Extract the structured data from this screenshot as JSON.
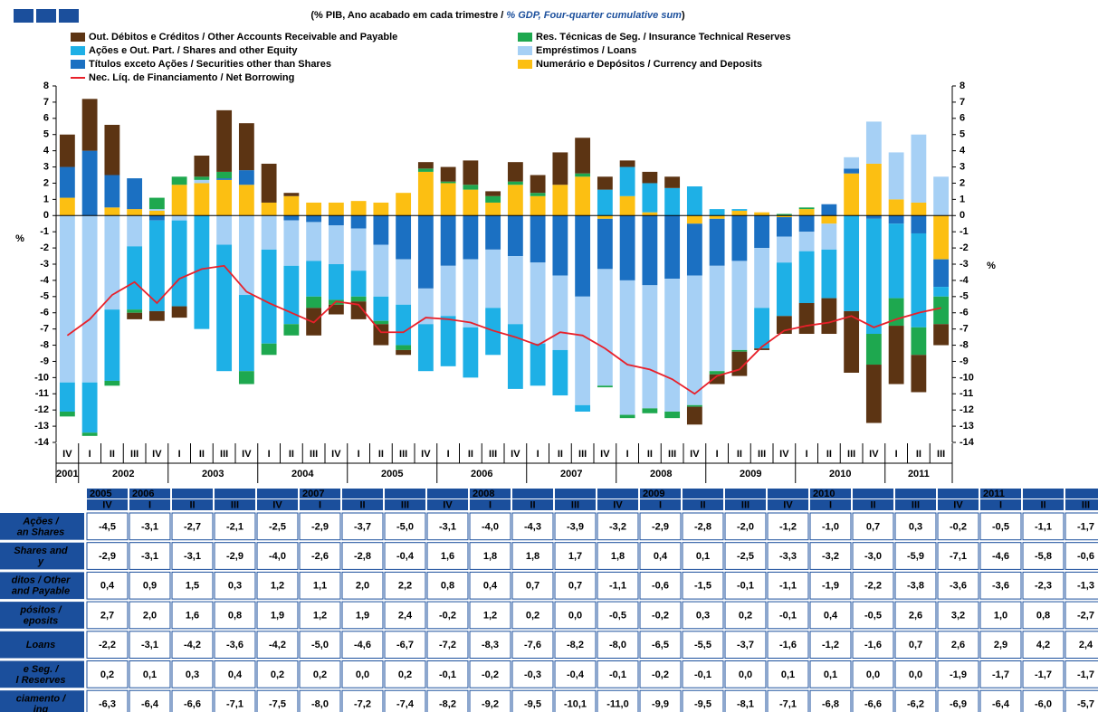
{
  "chart_data": {
    "type": "bar",
    "stacked": true,
    "subtitle": [
      "(% PIB, Ano acabado em cada trimestre / ",
      "% GDP, Four-quarter cumulative sum",
      ")"
    ],
    "y_label": "%",
    "y2_label": "%",
    "categories": [
      "IV",
      "I",
      "II",
      "III",
      "IV",
      "I",
      "II",
      "III",
      "IV",
      "I",
      "II",
      "III",
      "IV",
      "I",
      "II",
      "III",
      "IV",
      "I",
      "II",
      "III",
      "IV",
      "I",
      "II",
      "III",
      "IV",
      "I",
      "II",
      "III",
      "IV",
      "I",
      "II",
      "III",
      "IV",
      "I",
      "II",
      "III",
      "IV",
      "I",
      "II",
      "III"
    ],
    "groups": [
      {
        "label": "2001",
        "n": 1
      },
      {
        "label": "2002",
        "n": 4
      },
      {
        "label": "2003",
        "n": 4
      },
      {
        "label": "2004",
        "n": 4
      },
      {
        "label": "2005",
        "n": 4
      },
      {
        "label": "2006",
        "n": 4
      },
      {
        "label": "2007",
        "n": 4
      },
      {
        "label": "2008",
        "n": 4
      },
      {
        "label": "2009",
        "n": 4
      },
      {
        "label": "2010",
        "n": 4
      },
      {
        "label": "2011",
        "n": 3
      }
    ],
    "ylim": [
      -14,
      8
    ],
    "yticks": [
      -14,
      -13,
      -12,
      -11,
      -10,
      -9,
      -8,
      -7,
      -6,
      -5,
      -4,
      -3,
      -2,
      -1,
      0,
      1,
      2,
      3,
      4,
      5,
      6,
      7,
      8
    ],
    "y2lim": [
      -14,
      8
    ],
    "y2ticks": [
      -14,
      -13,
      -12,
      -11,
      -10,
      -9,
      -8,
      -7,
      -6,
      -5,
      -4,
      -3,
      -2,
      -1,
      0,
      1,
      2,
      3,
      4,
      5,
      6,
      7,
      8
    ],
    "grid": false,
    "series": [
      {
        "name": "Out. Débitos e Créditos / Other Accounts Receivable and Payable",
        "color": "#5c3413",
        "values": [
          2.0,
          3.2,
          3.1,
          -0.4,
          -0.6,
          -0.7,
          1.3,
          3.8,
          2.9,
          2.4,
          0.2,
          -1.7,
          -0.6,
          -1.1,
          -1.3,
          -0.3,
          0.4,
          0.9,
          1.5,
          0.3,
          1.2,
          1.1,
          2.0,
          2.2,
          0.8,
          0.4,
          0.7,
          0.7,
          -1.1,
          -0.6,
          -1.5,
          -0.1,
          -1.1,
          -1.9,
          -2.2,
          -3.8,
          -3.6,
          -3.6,
          -2.3,
          -1.3
        ]
      },
      {
        "name": "Res. Técnicas de Seg. / Insurance Technical Reserves",
        "color": "#1ea84f",
        "values": [
          -0.3,
          -0.2,
          -0.3,
          -0.2,
          0.7,
          0.5,
          0.2,
          0.4,
          -0.8,
          -0.7,
          -0.7,
          -0.7,
          -0.3,
          -0.3,
          -0.2,
          -0.3,
          0.2,
          0.1,
          0.3,
          0.4,
          0.2,
          0.2,
          0.0,
          0.2,
          -0.1,
          -0.2,
          -0.3,
          -0.4,
          -0.1,
          -0.2,
          -0.1,
          0.0,
          0.1,
          0.1,
          0.0,
          0.0,
          -1.9,
          -1.7,
          -1.7,
          -1.7
        ]
      },
      {
        "name": "Ações e Out. Part. / Shares and other Equity",
        "color": "#1eb0e6",
        "values": [
          -1.8,
          -3.1,
          -4.4,
          -3.9,
          -5.6,
          -5.3,
          -7.0,
          -7.8,
          -4.7,
          -5.8,
          -3.6,
          -2.2,
          -2.2,
          -1.6,
          -1.5,
          -2.5,
          -2.9,
          -3.1,
          -3.1,
          -2.9,
          -4.0,
          -2.6,
          -2.8,
          -0.4,
          1.6,
          1.8,
          1.8,
          1.7,
          1.8,
          0.4,
          0.1,
          -2.5,
          -3.3,
          -3.2,
          -3.0,
          -5.9,
          -7.1,
          -4.6,
          -5.8,
          -0.6
        ]
      },
      {
        "name": "Empréstimos / Loans",
        "color": "#a6d0f5",
        "values": [
          -10.3,
          -10.3,
          -5.8,
          -1.9,
          0.1,
          -0.3,
          0.2,
          -1.8,
          -4.9,
          -2.1,
          -2.8,
          -2.4,
          -2.4,
          -2.6,
          -3.2,
          -2.8,
          -2.2,
          -3.1,
          -4.2,
          -3.6,
          -4.2,
          -5.0,
          -4.6,
          -6.7,
          -7.2,
          -8.3,
          -7.6,
          -8.2,
          -8.0,
          -6.5,
          -5.5,
          -3.7,
          -1.6,
          -1.2,
          -1.6,
          0.7,
          2.6,
          2.9,
          4.2,
          2.4
        ]
      },
      {
        "name": "Títulos exceto Ações / Securities other than Shares",
        "color": "#1b70c2",
        "values": [
          1.9,
          4.0,
          2.0,
          1.9,
          -0.3,
          0,
          0,
          0.1,
          0.9,
          0,
          -0.3,
          -0.4,
          -0.6,
          -0.8,
          -1.8,
          -2.7,
          -4.5,
          -3.1,
          -2.7,
          -2.1,
          -2.5,
          -2.9,
          -3.7,
          -5.0,
          -3.1,
          -4.0,
          -4.3,
          -3.9,
          -3.2,
          -2.9,
          -2.8,
          -2.0,
          -1.2,
          -1.0,
          0.7,
          0.3,
          -0.2,
          -0.5,
          -1.1,
          -1.7
        ]
      },
      {
        "name": "Numerário e Depósitos / Currency and Deposits",
        "color": "#fcbf12",
        "values": [
          1.1,
          0,
          0.5,
          0.4,
          0.3,
          1.9,
          2.0,
          2.2,
          1.9,
          0.8,
          1.2,
          0.8,
          0.8,
          0.9,
          0.8,
          1.4,
          2.7,
          2.0,
          1.6,
          0.8,
          1.9,
          1.2,
          1.9,
          2.4,
          -0.2,
          1.2,
          0.2,
          0.0,
          -0.5,
          -0.2,
          0.3,
          0.2,
          -0.1,
          0.4,
          -0.5,
          2.6,
          3.2,
          1.0,
          0.8,
          -2.7
        ]
      },
      {
        "name": "Nec. Líq. de Financiamento / Net Borrowing",
        "color": "#e8202a",
        "type": "line",
        "values": [
          -7.4,
          -6.4,
          -4.9,
          -4.1,
          -5.4,
          -3.9,
          -3.3,
          -3.1,
          -4.7,
          -5.4,
          -6.0,
          -6.6,
          -5.3,
          -5.5,
          -7.2,
          -7.2,
          -6.3,
          -6.4,
          -6.6,
          -7.1,
          -7.5,
          -8.0,
          -7.2,
          -7.4,
          -8.2,
          -9.2,
          -9.5,
          -10.1,
          -11.0,
          -9.9,
          -9.5,
          -8.1,
          -7.1,
          -6.8,
          -6.6,
          -6.2,
          -6.9,
          -6.4,
          -6.0,
          -5.7
        ]
      }
    ]
  },
  "table": {
    "year_row": [
      "2005",
      "2006",
      null,
      null,
      null,
      "2007",
      null,
      null,
      null,
      "2008",
      null,
      null,
      null,
      "2009",
      null,
      null,
      null,
      "2010",
      null,
      null,
      null,
      "2011",
      null,
      null
    ],
    "quarter_row": [
      "IV",
      "I",
      "II",
      "III",
      "IV",
      "I",
      "II",
      "III",
      "IV",
      "I",
      "II",
      "III",
      "IV",
      "I",
      "II",
      "III",
      "IV",
      "I",
      "II",
      "III",
      "IV",
      "I",
      "II",
      "III"
    ],
    "rows": [
      {
        "label": [
          "Ações /",
          "an Shares"
        ],
        "cells": [
          "-4,5",
          "-3,1",
          "-2,7",
          "-2,1",
          "-2,5",
          "-2,9",
          "-3,7",
          "-5,0",
          "-3,1",
          "-4,0",
          "-4,3",
          "-3,9",
          "-3,2",
          "-2,9",
          "-2,8",
          "-2,0",
          "-1,2",
          "-1,0",
          "0,7",
          "0,3",
          "-0,2",
          "-0,5",
          "-1,1",
          "-1,7"
        ]
      },
      {
        "label": [
          "Shares and",
          "y"
        ],
        "cells": [
          "-2,9",
          "-3,1",
          "-3,1",
          "-2,9",
          "-4,0",
          "-2,6",
          "-2,8",
          "-0,4",
          "1,6",
          "1,8",
          "1,8",
          "1,7",
          "1,8",
          "0,4",
          "0,1",
          "-2,5",
          "-3,3",
          "-3,2",
          "-3,0",
          "-5,9",
          "-7,1",
          "-4,6",
          "-5,8",
          "-0,6"
        ]
      },
      {
        "label": [
          "ditos / Other",
          "and Payable"
        ],
        "cells": [
          "0,4",
          "0,9",
          "1,5",
          "0,3",
          "1,2",
          "1,1",
          "2,0",
          "2,2",
          "0,8",
          "0,4",
          "0,7",
          "0,7",
          "-1,1",
          "-0,6",
          "-1,5",
          "-0,1",
          "-1,1",
          "-1,9",
          "-2,2",
          "-3,8",
          "-3,6",
          "-3,6",
          "-2,3",
          "-1,3"
        ]
      },
      {
        "label": [
          "pósitos /",
          "eposits"
        ],
        "cells": [
          "2,7",
          "2,0",
          "1,6",
          "0,8",
          "1,9",
          "1,2",
          "1,9",
          "2,4",
          "-0,2",
          "1,2",
          "0,2",
          "0,0",
          "-0,5",
          "-0,2",
          "0,3",
          "0,2",
          "-0,1",
          "0,4",
          "-0,5",
          "2,6",
          "3,2",
          "1,0",
          "0,8",
          "-2,7"
        ]
      },
      {
        "label": [
          "Loans"
        ],
        "cells": [
          "-2,2",
          "-3,1",
          "-4,2",
          "-3,6",
          "-4,2",
          "-5,0",
          "-4,6",
          "-6,7",
          "-7,2",
          "-8,3",
          "-7,6",
          "-8,2",
          "-8,0",
          "-6,5",
          "-5,5",
          "-3,7",
          "-1,6",
          "-1,2",
          "-1,6",
          "0,7",
          "2,6",
          "2,9",
          "4,2",
          "2,4"
        ]
      },
      {
        "label": [
          "e Seg. /",
          "l Reserves"
        ],
        "cells": [
          "0,2",
          "0,1",
          "0,3",
          "0,4",
          "0,2",
          "0,2",
          "0,0",
          "0,2",
          "-0,1",
          "-0,2",
          "-0,3",
          "-0,4",
          "-0,1",
          "-0,2",
          "-0,1",
          "0,0",
          "0,1",
          "0,1",
          "0,0",
          "0,0",
          "-1,9",
          "-1,7",
          "-1,7",
          "-1,7"
        ]
      },
      {
        "label": [
          "ciamento /",
          "ing"
        ],
        "cells": [
          "-6,3",
          "-6,4",
          "-6,6",
          "-7,1",
          "-7,5",
          "-8,0",
          "-7,2",
          "-7,4",
          "-8,2",
          "-9,2",
          "-9,5",
          "-10,1",
          "-11,0",
          "-9,9",
          "-9,5",
          "-8,1",
          "-7,1",
          "-6,8",
          "-6,6",
          "-6,2",
          "-6,9",
          "-6,4",
          "-6,0",
          "-5,7"
        ]
      }
    ]
  }
}
